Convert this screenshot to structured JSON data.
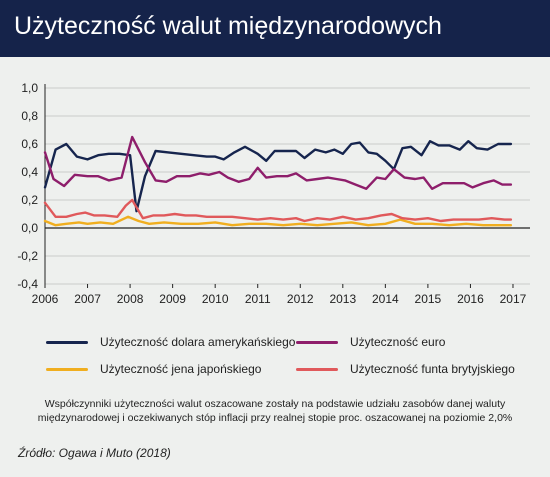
{
  "title": "Użyteczność walut międzynarodowych",
  "note": "Współczynniki użyteczności walut oszacowane zostały na podstawie udziału zasobów danej waluty międzynarodowej i oczekiwanych stóp inflacji przy realnej stopie proc. oszacowanej na poziomie 2,0%",
  "source": "Źródło: Ogawa i Muto (2018)",
  "chart_data": {
    "type": "line",
    "title": "",
    "xlabel": "",
    "ylabel": "",
    "xlim": [
      2006,
      2017.4
    ],
    "ylim": [
      -0.4,
      1.0
    ],
    "y_ticks": [
      -0.4,
      -0.2,
      0.0,
      0.2,
      0.4,
      0.6,
      0.8,
      1.0
    ],
    "y_tick_labels": [
      "-0,4",
      "-0,2",
      "0,0",
      "0,2",
      "0,4",
      "0,6",
      "0,8",
      "1,0"
    ],
    "x_tick_labels": [
      "2006",
      "2007",
      "2008",
      "2009",
      "2010",
      "2011",
      "2012",
      "2013",
      "2014",
      "2015",
      "2016",
      "2017"
    ],
    "grid": true,
    "legend_position": "bottom",
    "series": [
      {
        "name": "Użyteczność dolara amerykańskiego",
        "color": "#16254e",
        "points": [
          [
            2006.0,
            0.29
          ],
          [
            2006.25,
            0.56
          ],
          [
            2006.5,
            0.6
          ],
          [
            2006.75,
            0.51
          ],
          [
            2007.0,
            0.49
          ],
          [
            2007.25,
            0.52
          ],
          [
            2007.5,
            0.53
          ],
          [
            2007.75,
            0.53
          ],
          [
            2008.0,
            0.52
          ],
          [
            2008.15,
            0.12
          ],
          [
            2008.35,
            0.37
          ],
          [
            2008.6,
            0.55
          ],
          [
            2008.9,
            0.54
          ],
          [
            2009.2,
            0.53
          ],
          [
            2009.5,
            0.52
          ],
          [
            2009.8,
            0.51
          ],
          [
            2010.0,
            0.51
          ],
          [
            2010.2,
            0.49
          ],
          [
            2010.45,
            0.54
          ],
          [
            2010.7,
            0.58
          ],
          [
            2011.0,
            0.53
          ],
          [
            2011.2,
            0.48
          ],
          [
            2011.4,
            0.55
          ],
          [
            2011.7,
            0.55
          ],
          [
            2011.9,
            0.55
          ],
          [
            2012.1,
            0.5
          ],
          [
            2012.35,
            0.56
          ],
          [
            2012.6,
            0.54
          ],
          [
            2012.8,
            0.56
          ],
          [
            2013.0,
            0.53
          ],
          [
            2013.2,
            0.6
          ],
          [
            2013.4,
            0.61
          ],
          [
            2013.6,
            0.54
          ],
          [
            2013.8,
            0.53
          ],
          [
            2014.0,
            0.48
          ],
          [
            2014.2,
            0.42
          ],
          [
            2014.4,
            0.57
          ],
          [
            2014.6,
            0.58
          ],
          [
            2014.85,
            0.52
          ],
          [
            2015.05,
            0.62
          ],
          [
            2015.25,
            0.59
          ],
          [
            2015.5,
            0.59
          ],
          [
            2015.75,
            0.56
          ],
          [
            2015.95,
            0.62
          ],
          [
            2016.15,
            0.57
          ],
          [
            2016.4,
            0.56
          ],
          [
            2016.65,
            0.6
          ],
          [
            2016.95,
            0.6
          ]
        ]
      },
      {
        "name": "Użyteczność euro",
        "color": "#8e1e6b",
        "points": [
          [
            2006.0,
            0.54
          ],
          [
            2006.2,
            0.35
          ],
          [
            2006.45,
            0.3
          ],
          [
            2006.7,
            0.38
          ],
          [
            2007.0,
            0.37
          ],
          [
            2007.25,
            0.37
          ],
          [
            2007.5,
            0.34
          ],
          [
            2007.8,
            0.36
          ],
          [
            2008.05,
            0.65
          ],
          [
            2008.35,
            0.47
          ],
          [
            2008.6,
            0.34
          ],
          [
            2008.85,
            0.33
          ],
          [
            2009.1,
            0.37
          ],
          [
            2009.4,
            0.37
          ],
          [
            2009.65,
            0.39
          ],
          [
            2009.85,
            0.38
          ],
          [
            2010.1,
            0.4
          ],
          [
            2010.3,
            0.36
          ],
          [
            2010.55,
            0.33
          ],
          [
            2010.8,
            0.35
          ],
          [
            2011.0,
            0.43
          ],
          [
            2011.2,
            0.36
          ],
          [
            2011.45,
            0.37
          ],
          [
            2011.7,
            0.37
          ],
          [
            2011.9,
            0.39
          ],
          [
            2012.15,
            0.34
          ],
          [
            2012.4,
            0.35
          ],
          [
            2012.65,
            0.36
          ],
          [
            2012.85,
            0.35
          ],
          [
            2013.05,
            0.34
          ],
          [
            2013.3,
            0.31
          ],
          [
            2013.55,
            0.28
          ],
          [
            2013.8,
            0.36
          ],
          [
            2014.0,
            0.35
          ],
          [
            2014.2,
            0.42
          ],
          [
            2014.45,
            0.36
          ],
          [
            2014.7,
            0.35
          ],
          [
            2014.9,
            0.36
          ],
          [
            2015.1,
            0.28
          ],
          [
            2015.35,
            0.32
          ],
          [
            2015.6,
            0.32
          ],
          [
            2015.85,
            0.32
          ],
          [
            2016.05,
            0.29
          ],
          [
            2016.3,
            0.32
          ],
          [
            2016.55,
            0.34
          ],
          [
            2016.75,
            0.31
          ],
          [
            2016.95,
            0.31
          ]
        ]
      },
      {
        "name": "Użyteczność jena japońskiego",
        "color": "#f0ae1f",
        "points": [
          [
            2006.0,
            0.05
          ],
          [
            2006.25,
            0.02
          ],
          [
            2006.5,
            0.03
          ],
          [
            2006.8,
            0.04
          ],
          [
            2007.0,
            0.03
          ],
          [
            2007.3,
            0.04
          ],
          [
            2007.6,
            0.03
          ],
          [
            2007.95,
            0.08
          ],
          [
            2008.2,
            0.05
          ],
          [
            2008.45,
            0.03
          ],
          [
            2008.8,
            0.04
          ],
          [
            2009.2,
            0.03
          ],
          [
            2009.6,
            0.03
          ],
          [
            2010.0,
            0.04
          ],
          [
            2010.4,
            0.02
          ],
          [
            2010.8,
            0.03
          ],
          [
            2011.2,
            0.03
          ],
          [
            2011.6,
            0.02
          ],
          [
            2012.0,
            0.03
          ],
          [
            2012.4,
            0.02
          ],
          [
            2012.8,
            0.03
          ],
          [
            2013.2,
            0.04
          ],
          [
            2013.6,
            0.02
          ],
          [
            2014.0,
            0.03
          ],
          [
            2014.35,
            0.06
          ],
          [
            2014.7,
            0.03
          ],
          [
            2015.1,
            0.03
          ],
          [
            2015.5,
            0.02
          ],
          [
            2015.9,
            0.03
          ],
          [
            2016.3,
            0.02
          ],
          [
            2016.7,
            0.02
          ],
          [
            2016.95,
            0.02
          ]
        ]
      },
      {
        "name": "Użyteczność funta brytyjskiego",
        "color": "#e0595b",
        "points": [
          [
            2006.0,
            0.18
          ],
          [
            2006.25,
            0.08
          ],
          [
            2006.5,
            0.08
          ],
          [
            2006.75,
            0.1
          ],
          [
            2006.95,
            0.11
          ],
          [
            2007.15,
            0.09
          ],
          [
            2007.4,
            0.09
          ],
          [
            2007.7,
            0.08
          ],
          [
            2007.9,
            0.16
          ],
          [
            2008.05,
            0.2
          ],
          [
            2008.3,
            0.07
          ],
          [
            2008.55,
            0.09
          ],
          [
            2008.8,
            0.09
          ],
          [
            2009.05,
            0.1
          ],
          [
            2009.3,
            0.09
          ],
          [
            2009.55,
            0.09
          ],
          [
            2009.8,
            0.08
          ],
          [
            2010.1,
            0.08
          ],
          [
            2010.4,
            0.08
          ],
          [
            2010.7,
            0.07
          ],
          [
            2011.0,
            0.06
          ],
          [
            2011.3,
            0.07
          ],
          [
            2011.6,
            0.06
          ],
          [
            2011.9,
            0.07
          ],
          [
            2012.1,
            0.05
          ],
          [
            2012.4,
            0.07
          ],
          [
            2012.7,
            0.06
          ],
          [
            2013.0,
            0.08
          ],
          [
            2013.3,
            0.06
          ],
          [
            2013.6,
            0.07
          ],
          [
            2013.9,
            0.09
          ],
          [
            2014.15,
            0.1
          ],
          [
            2014.4,
            0.07
          ],
          [
            2014.7,
            0.06
          ],
          [
            2015.0,
            0.07
          ],
          [
            2015.3,
            0.05
          ],
          [
            2015.6,
            0.06
          ],
          [
            2015.9,
            0.06
          ],
          [
            2016.2,
            0.06
          ],
          [
            2016.5,
            0.07
          ],
          [
            2016.8,
            0.06
          ],
          [
            2016.95,
            0.06
          ]
        ]
      }
    ]
  }
}
